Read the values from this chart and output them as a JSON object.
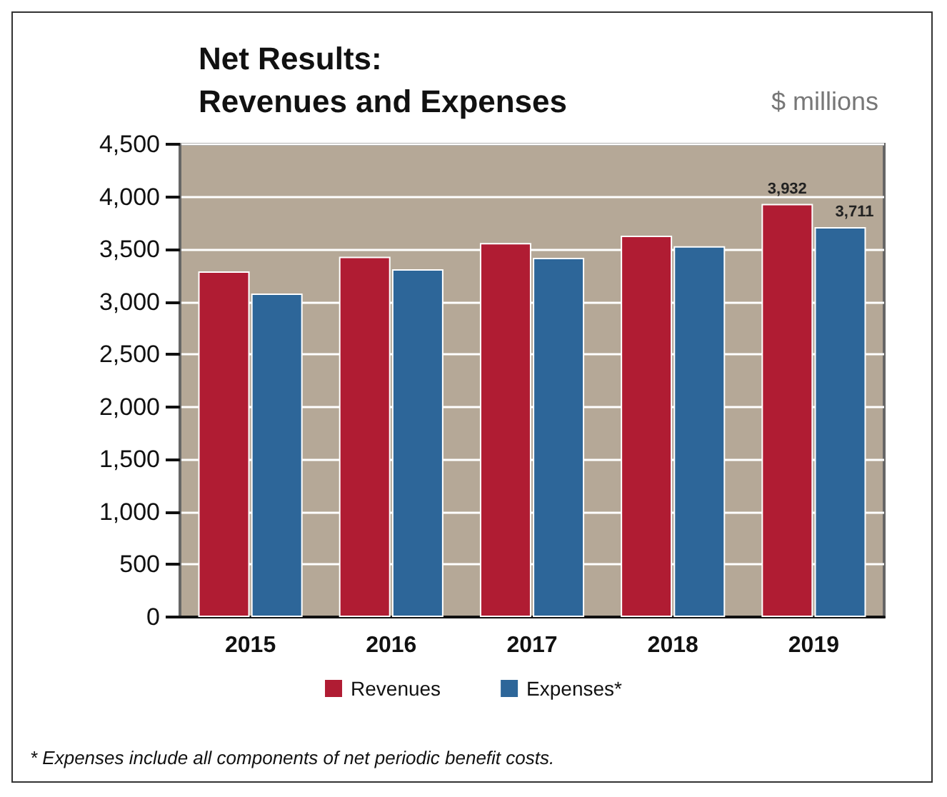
{
  "chart_data": {
    "type": "bar",
    "title": "Net Results:\nRevenues and Expenses",
    "subtitle": "$ millions",
    "categories": [
      "2015",
      "2016",
      "2017",
      "2018",
      "2019"
    ],
    "series": [
      {
        "name": "Revenues",
        "color": "#b01c33",
        "values": [
          3290,
          3430,
          3560,
          3630,
          3932
        ],
        "value_labels": [
          null,
          null,
          null,
          null,
          "3,932"
        ]
      },
      {
        "name": "Expenses*",
        "color": "#2d6699",
        "values": [
          3080,
          3310,
          3420,
          3530,
          3711
        ],
        "value_labels": [
          null,
          null,
          null,
          null,
          "3,711"
        ]
      }
    ],
    "ylim": [
      0,
      4500
    ],
    "yticks": [
      0,
      500,
      {
        "value": 1000,
        "label": "1,000"
      },
      {
        "value": 1500,
        "label": "1,500"
      },
      {
        "value": 2000,
        "label": "2,000"
      },
      {
        "value": 2500,
        "label": "2,500"
      },
      {
        "value": 3000,
        "label": "3,000"
      },
      {
        "value": 3500,
        "label": "3,500"
      },
      {
        "value": 4000,
        "label": "4,000"
      },
      {
        "value": 4500,
        "label": "4,500"
      }
    ],
    "grid": "y",
    "legend": "bottom",
    "annotations": [
      "* Expenses include all components of net periodic benefit costs."
    ]
  }
}
